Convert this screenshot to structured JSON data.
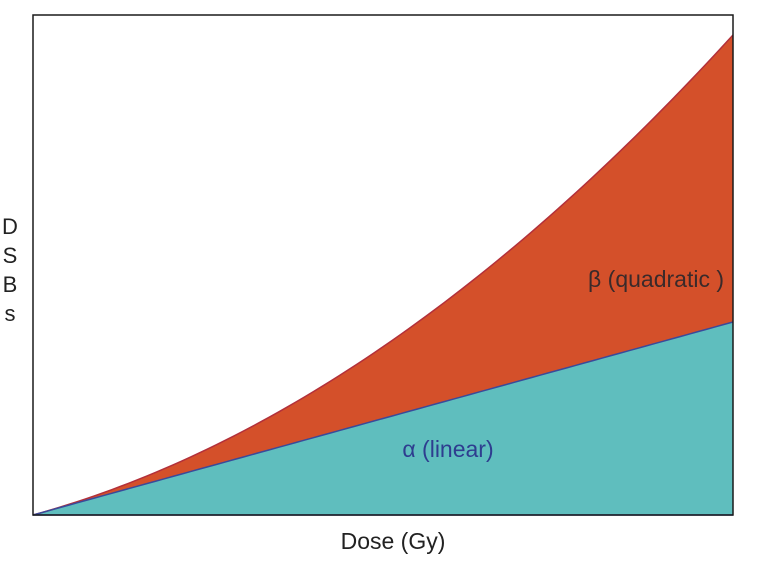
{
  "chart_data": {
    "type": "area",
    "title": "",
    "xlabel": "Dose (Gy)",
    "ylabel": "DSBs",
    "grid": false,
    "legend": "none",
    "series": [
      {
        "name": "α (linear)",
        "kind": "linear",
        "color": "#5fbebe",
        "edge_color": "#3a4a9a",
        "label_color": "#2e3d8f"
      },
      {
        "name": "β (quadratic )",
        "kind": "quadratic",
        "color": "#d4502a",
        "edge_color": "#b3303a",
        "label_color": "#3a2a2a"
      }
    ]
  }
}
